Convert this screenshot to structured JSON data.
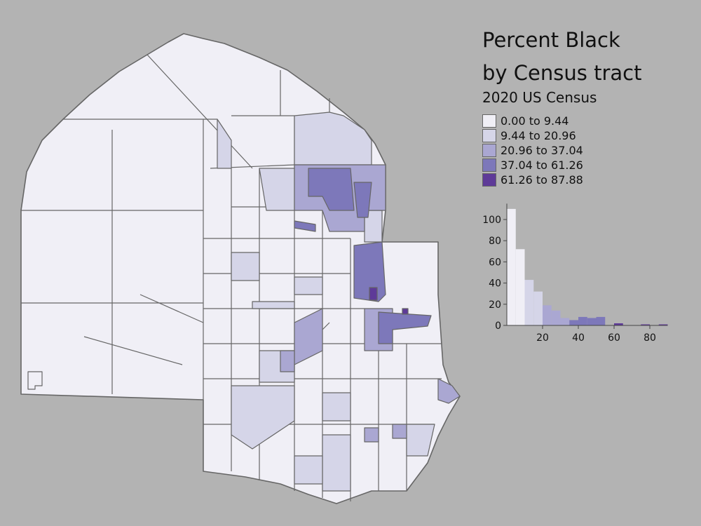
{
  "title_line1": "Percent Black",
  "title_line2": "by Census tract",
  "subtitle": "2020 US Census",
  "colors": {
    "background": "#b3b3b3",
    "border": "#666666",
    "classes": [
      "#f0eff6",
      "#d5d5e8",
      "#aaa7d2",
      "#7d78ba",
      "#5e3a98"
    ]
  },
  "legend": [
    {
      "label": "0.00 to 9.44"
    },
    {
      "label": "9.44 to 20.96"
    },
    {
      "label": "20.96 to 37.04"
    },
    {
      "label": "37.04 to 61.26"
    },
    {
      "label": "61.26 to 87.88"
    }
  ],
  "chart_data": {
    "type": "bar",
    "bin_width": 5,
    "bin_starts": [
      0,
      5,
      10,
      15,
      20,
      25,
      30,
      35,
      40,
      45,
      50,
      55,
      60,
      65,
      70,
      75,
      80,
      85
    ],
    "values": [
      110,
      72,
      43,
      32,
      19,
      14,
      7,
      5,
      8,
      7,
      8,
      0,
      2,
      0,
      0,
      1,
      0,
      1
    ],
    "class_breaks": [
      0,
      9.44,
      20.96,
      37.04,
      61.26,
      87.88
    ],
    "xlim": [
      0,
      90
    ],
    "ylim": [
      0,
      115
    ],
    "xticks": [
      "20",
      "40",
      "60",
      "80"
    ],
    "yticks": [
      "0",
      "20",
      "40",
      "60",
      "80",
      "100"
    ],
    "grid": false
  }
}
